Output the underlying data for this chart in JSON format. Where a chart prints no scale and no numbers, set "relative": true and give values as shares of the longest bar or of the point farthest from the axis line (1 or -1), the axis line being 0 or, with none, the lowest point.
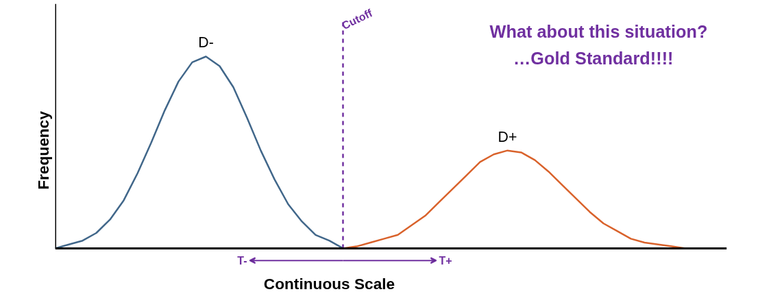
{
  "chart_data": {
    "type": "line",
    "relative": true,
    "xlabel": "Continuous Scale",
    "ylabel": "Frequency",
    "marker": "none",
    "line_style": "solid",
    "categories": [
      null,
      null,
      null,
      null,
      null,
      null,
      null,
      null,
      null,
      null,
      null,
      null,
      null,
      null,
      null,
      null,
      null,
      null,
      null,
      null,
      null,
      null,
      null,
      null,
      null,
      null,
      null,
      null,
      null,
      null,
      null,
      null,
      null,
      null,
      null,
      null,
      null,
      null,
      null,
      null,
      null,
      null,
      null,
      null,
      null,
      null,
      null,
      null
    ],
    "series": [
      {
        "name": "D-",
        "color": "#41678a",
        "values": [
          0,
          0.02,
          0.04,
          0.08,
          0.15,
          0.25,
          0.39,
          0.55,
          0.72,
          0.87,
          0.97,
          1.0,
          0.95,
          0.84,
          0.68,
          0.51,
          0.36,
          0.23,
          0.14,
          0.07,
          0.04,
          0,
          null,
          null,
          null,
          null,
          null,
          null,
          null,
          null,
          null,
          null,
          null,
          null,
          null,
          null,
          null,
          null,
          null,
          null,
          null,
          null,
          null,
          null,
          null,
          null,
          null,
          null
        ]
      },
      {
        "name": "D+",
        "color": "#d9622b",
        "values": [
          null,
          null,
          null,
          null,
          null,
          null,
          null,
          null,
          null,
          null,
          null,
          null,
          null,
          null,
          null,
          null,
          null,
          null,
          null,
          null,
          null,
          0,
          0.01,
          0.03,
          0.05,
          0.07,
          0.12,
          0.17,
          0.24,
          0.31,
          0.38,
          0.45,
          0.49,
          0.51,
          0.5,
          0.46,
          0.4,
          0.33,
          0.26,
          0.19,
          0.13,
          0.09,
          0.05,
          0.03,
          0.02,
          0.01,
          0,
          0
        ]
      }
    ],
    "annotations": [
      "What about this situation?",
      "…Gold Standard!!!!",
      "T-",
      "T+",
      "Cutoff"
    ]
  }
}
